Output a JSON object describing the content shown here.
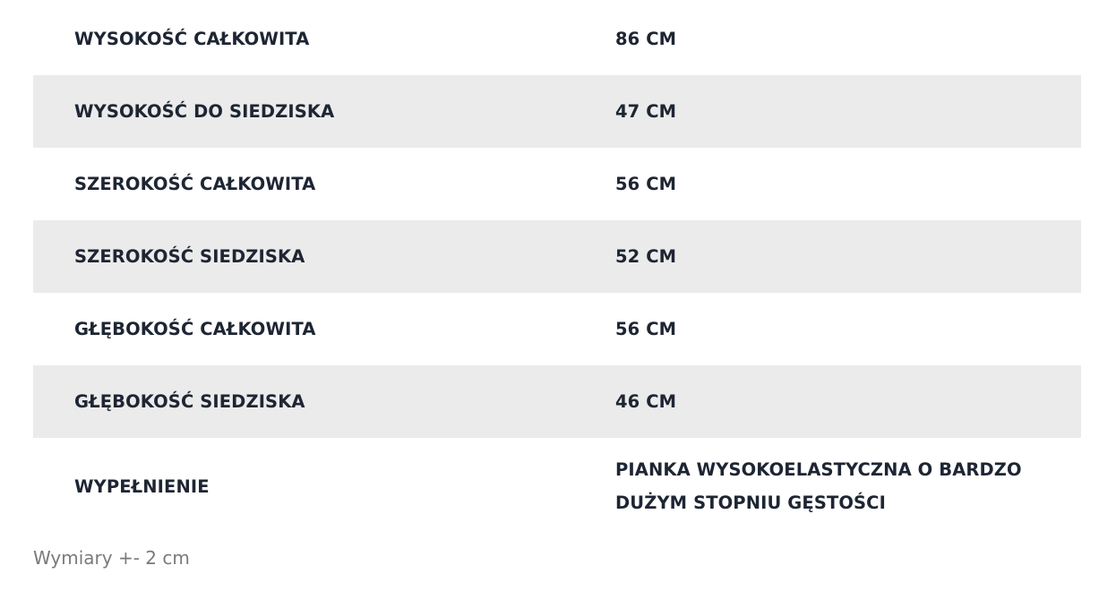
{
  "specs": [
    {
      "label": "WYSOKOŚĆ CAŁKOWITA",
      "value": "86 CM"
    },
    {
      "label": "WYSOKOŚĆ DO SIEDZISKA",
      "value": "47 CM"
    },
    {
      "label": "SZEROKOŚĆ CAŁKOWITA",
      "value": "56 CM"
    },
    {
      "label": "SZEROKOŚĆ SIEDZISKA",
      "value": "52 CM"
    },
    {
      "label": "GŁĘBOKOŚĆ CAŁKOWITA",
      "value": "56 CM"
    },
    {
      "label": "GŁĘBOKOŚĆ SIEDZISKA",
      "value": "46 CM"
    },
    {
      "label": "WYPEŁNIENIE",
      "value": "PIANKA WYSOKOELASTYCZNA O BARDZO DUŻYM STOPNIU GĘSTOŚCI"
    }
  ],
  "note": "Wymiary +- 2 cm",
  "colors": {
    "shaded_row": "#ebebeb",
    "text": "#1e2533",
    "note_text": "#7a7a7a"
  }
}
